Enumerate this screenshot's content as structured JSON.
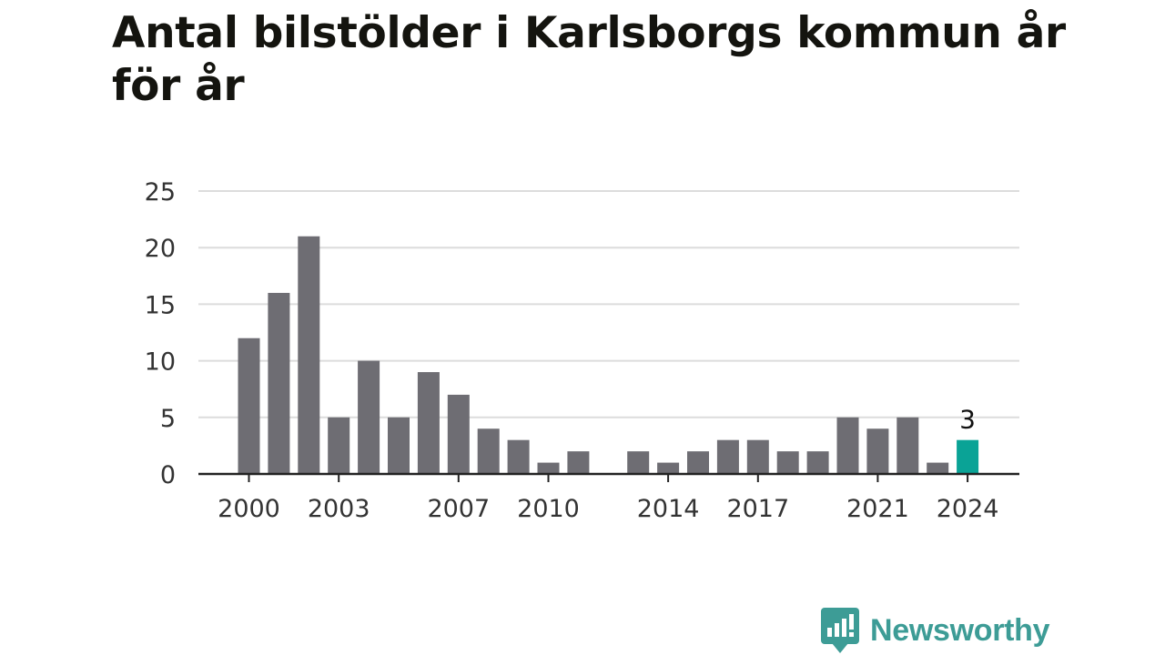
{
  "title": "Antal bilstölder i Karlsborgs kommun år för år",
  "brand": {
    "name": "Newsworthy",
    "icon": "newsworthy-logo-icon",
    "color": "#3d9c96"
  },
  "colors": {
    "bar": "#6e6d73",
    "highlight": "#0aa396",
    "grid": "#dcdcdc",
    "axis": "#222222",
    "text": "#333333"
  },
  "chart_data": {
    "type": "bar",
    "title": "Antal bilstölder i Karlsborgs kommun år för år",
    "xlabel": "",
    "ylabel": "",
    "categories": [
      "2000",
      "2001",
      "2002",
      "2003",
      "2004",
      "2005",
      "2006",
      "2007",
      "2008",
      "2009",
      "2010",
      "2011",
      "2012",
      "2013",
      "2014",
      "2015",
      "2016",
      "2017",
      "2018",
      "2019",
      "2020",
      "2021",
      "2022",
      "2023",
      "2024"
    ],
    "values": [
      12,
      16,
      21,
      5,
      10,
      5,
      9,
      7,
      4,
      3,
      1,
      2,
      0,
      2,
      1,
      2,
      3,
      3,
      2,
      2,
      5,
      4,
      5,
      1,
      3
    ],
    "highlight_index": 24,
    "highlight_label": "3",
    "xtick_labels": [
      "2000",
      "2003",
      "2007",
      "2010",
      "2014",
      "2017",
      "2021",
      "2024"
    ],
    "yticks": [
      0,
      5,
      10,
      15,
      20,
      25
    ],
    "ylim": [
      0,
      25
    ],
    "grid": true,
    "legend": "none"
  }
}
